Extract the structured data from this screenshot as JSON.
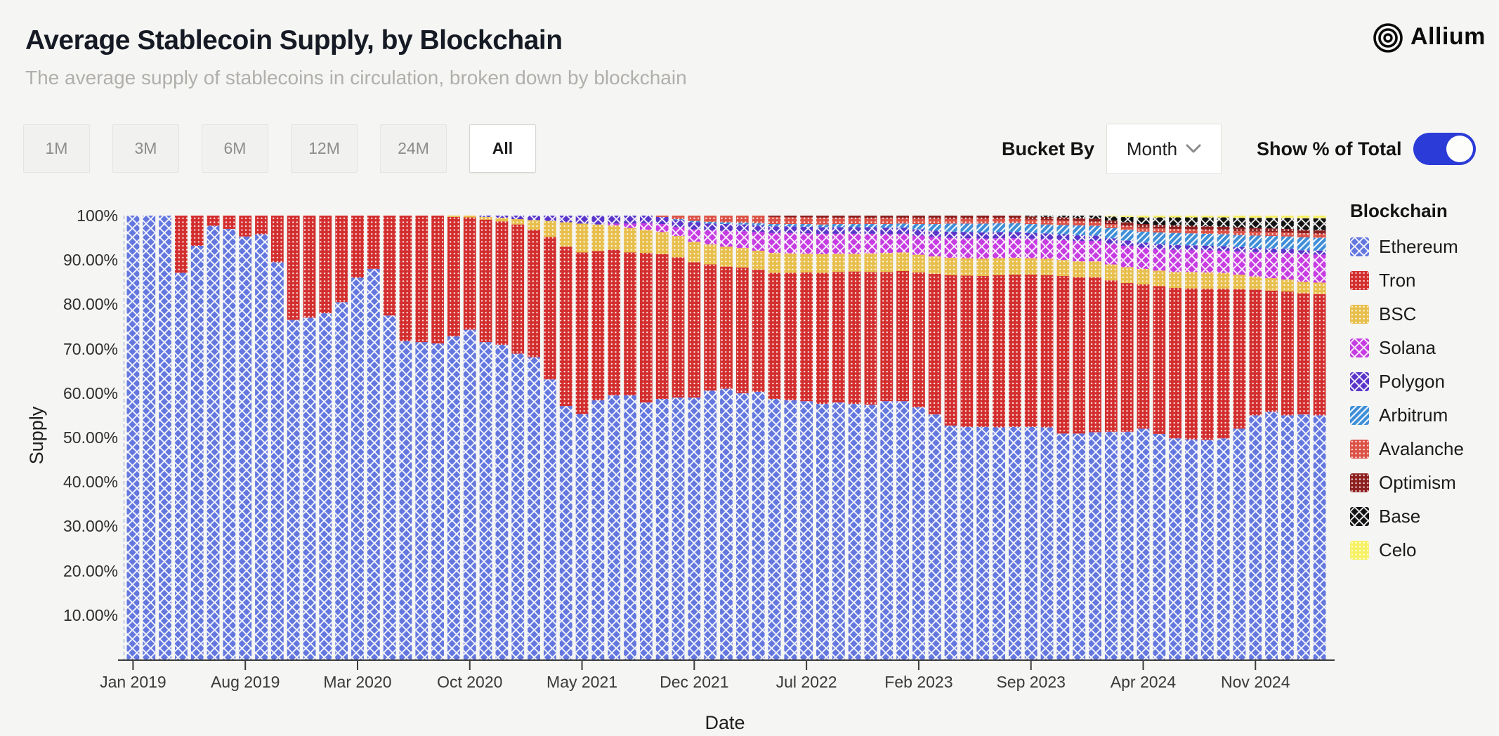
{
  "header": {
    "title": "Average Stablecoin Supply, by Blockchain",
    "subtitle": "The average supply of stablecoins in circulation, broken down by blockchain",
    "logo_text": "Allium"
  },
  "controls": {
    "range_buttons": [
      {
        "label": "1M",
        "active": false
      },
      {
        "label": "3M",
        "active": false
      },
      {
        "label": "6M",
        "active": false
      },
      {
        "label": "12M",
        "active": false
      },
      {
        "label": "24M",
        "active": false
      },
      {
        "label": "All",
        "active": true
      }
    ],
    "bucket_by_label": "Bucket By",
    "bucket_value": "Month",
    "toggle_label": "Show % of Total",
    "toggle_on": true,
    "accent_color": "#2b3bd8"
  },
  "legend": {
    "title": "Blockchain"
  },
  "chart_data": {
    "type": "bar",
    "stacked": true,
    "percent_of_total": true,
    "xlabel": "Date",
    "ylabel": "Supply",
    "ylim": [
      0,
      100
    ],
    "grid": false,
    "legend_position": "right",
    "ytick_labels": [
      "10.00%",
      "20.00%",
      "30.00%",
      "40.00%",
      "50.00%",
      "60.00%",
      "70.00%",
      "80.00%",
      "90.00%",
      "100%"
    ],
    "xticks": [
      {
        "label": "Jan 2019",
        "month": 0
      },
      {
        "label": "Aug 2019",
        "month": 7
      },
      {
        "label": "Mar 2020",
        "month": 14
      },
      {
        "label": "Oct 2020",
        "month": 21
      },
      {
        "label": "May 2021",
        "month": 28
      },
      {
        "label": "Dec 2021",
        "month": 35
      },
      {
        "label": "Jul 2022",
        "month": 42
      },
      {
        "label": "Feb 2023",
        "month": 49
      },
      {
        "label": "Sep 2023",
        "month": 56
      },
      {
        "label": "Apr 2024",
        "month": 63
      },
      {
        "label": "Nov 2024",
        "month": 70
      }
    ],
    "months": [
      "Jan 2019",
      "Feb 2019",
      "Mar 2019",
      "Apr 2019",
      "May 2019",
      "Jun 2019",
      "Jul 2019",
      "Aug 2019",
      "Sep 2019",
      "Oct 2019",
      "Nov 2019",
      "Dec 2019",
      "Jan 2020",
      "Feb 2020",
      "Mar 2020",
      "Apr 2020",
      "May 2020",
      "Jun 2020",
      "Jul 2020",
      "Aug 2020",
      "Sep 2020",
      "Oct 2020",
      "Nov 2020",
      "Dec 2020",
      "Jan 2021",
      "Feb 2021",
      "Mar 2021",
      "Apr 2021",
      "May 2021",
      "Jun 2021",
      "Jul 2021",
      "Aug 2021",
      "Sep 2021",
      "Oct 2021",
      "Nov 2021",
      "Dec 2021",
      "Jan 2022",
      "Feb 2022",
      "Mar 2022",
      "Apr 2022",
      "May 2022",
      "Jun 2022",
      "Jul 2022",
      "Aug 2022",
      "Sep 2022",
      "Oct 2022",
      "Nov 2022",
      "Dec 2022",
      "Jan 2023",
      "Feb 2023",
      "Mar 2023",
      "Apr 2023",
      "May 2023",
      "Jun 2023",
      "Jul 2023",
      "Aug 2023",
      "Sep 2023",
      "Oct 2023",
      "Nov 2023",
      "Dec 2023",
      "Jan 2024",
      "Feb 2024",
      "Mar 2024",
      "Apr 2024",
      "May 2024",
      "Jun 2024",
      "Jul 2024",
      "Aug 2024",
      "Sep 2024",
      "Oct 2024",
      "Nov 2024",
      "Dec 2024",
      "Jan 2025",
      "Feb 2025",
      "Mar 2025"
    ],
    "series": [
      {
        "name": "Ethereum",
        "color": "#6377de",
        "pattern": "diamond",
        "values": [
          100,
          100,
          100,
          87.1,
          93.2,
          97.7,
          97,
          95.3,
          95.8,
          89.5,
          76.5,
          77,
          78,
          80.5,
          86,
          88,
          77.5,
          71.7,
          71.5,
          71.2,
          72.8,
          74.3,
          71.5,
          70.9,
          68.9,
          68.1,
          63.1,
          57.1,
          55.3,
          58.4,
          59.5,
          59.5,
          57.9,
          58.7,
          59,
          59,
          60.6,
          61,
          60,
          60.3,
          58.7,
          58.4,
          58.2,
          57.6,
          57.9,
          57.6,
          57.4,
          58.2,
          58.2,
          56.8,
          55.2,
          52.7,
          52.4,
          52.4,
          52.3,
          52.4,
          52.4,
          52.3,
          50.9,
          50.9,
          51.2,
          51.3,
          51.3,
          52,
          50.8,
          49.8,
          49.6,
          49.5,
          49.8,
          52,
          55,
          55.8,
          55,
          55.2,
          55
        ]
      },
      {
        "name": "Tron",
        "color": "#d32e2e",
        "pattern": "dots",
        "values": [
          0,
          0,
          0,
          12.9,
          6.8,
          2.3,
          3,
          4.7,
          4.2,
          10.5,
          23.5,
          23,
          22,
          19.5,
          14,
          12,
          22.5,
          28.3,
          28.5,
          28.8,
          26.9,
          25.3,
          27.6,
          27.8,
          29.1,
          28.7,
          32.1,
          35.9,
          36.4,
          33.6,
          32.8,
          32.2,
          33.7,
          32.6,
          31.6,
          30.5,
          28.4,
          27.5,
          28.3,
          27.5,
          28.4,
          28.7,
          29,
          29.5,
          29.4,
          29.8,
          29.9,
          29.1,
          29.3,
          30.4,
          31.7,
          33.9,
          34.1,
          34,
          34.3,
          34.3,
          34.3,
          34.3,
          35.5,
          35.2,
          34.9,
          34.1,
          33.5,
          32.5,
          33.3,
          33.9,
          34,
          34,
          33.7,
          31.4,
          28.3,
          27.3,
          27.9,
          27.3,
          27.3
        ]
      },
      {
        "name": "BSC",
        "color": "#e8bf4c",
        "pattern": "dots",
        "values": [
          0,
          0,
          0,
          0,
          0,
          0,
          0,
          0,
          0,
          0,
          0,
          0,
          0,
          0,
          0,
          0,
          0,
          0,
          0,
          0,
          0.3,
          0.4,
          0.6,
          0.8,
          1.2,
          2.2,
          3.6,
          5.5,
          6.5,
          6,
          5.5,
          5.5,
          5.2,
          5,
          4.8,
          4.6,
          4.5,
          4.5,
          4.4,
          4.3,
          4.5,
          4.4,
          4.2,
          4.2,
          4.1,
          4,
          4.2,
          4.3,
          4.2,
          4,
          3.9,
          3.9,
          3.9,
          3.9,
          3.8,
          3.8,
          3.7,
          3.7,
          3.6,
          3.6,
          3.6,
          3.6,
          3.6,
          3.5,
          3.5,
          3.6,
          3.7,
          3.7,
          3.6,
          3.3,
          3,
          2.8,
          2.7,
          2.6,
          2.6
        ]
      },
      {
        "name": "Solana",
        "color": "#c63ce2",
        "pattern": "diamond",
        "values": [
          0,
          0,
          0,
          0,
          0,
          0,
          0,
          0,
          0,
          0,
          0,
          0,
          0,
          0,
          0,
          0,
          0,
          0,
          0,
          0,
          0,
          0,
          0,
          0,
          0,
          0,
          0,
          0,
          0,
          0,
          0.4,
          1,
          1.5,
          1.8,
          2,
          2.8,
          3.2,
          3.6,
          3.8,
          4.2,
          4.5,
          4.6,
          4.6,
          4.6,
          4.5,
          4.5,
          4.4,
          4.2,
          4.2,
          4.3,
          4.4,
          4.5,
          4.5,
          4.5,
          4.5,
          4.4,
          4.4,
          4.4,
          4.5,
          4.6,
          4.6,
          4.7,
          4.8,
          4.8,
          4.9,
          5,
          5,
          5,
          5,
          5.2,
          5.5,
          5.8,
          6,
          6.2,
          6.3
        ]
      },
      {
        "name": "Polygon",
        "color": "#5a35ca",
        "pattern": "diamond",
        "values": [
          0,
          0,
          0,
          0,
          0,
          0,
          0,
          0,
          0,
          0,
          0,
          0,
          0,
          0,
          0,
          0,
          0,
          0,
          0,
          0,
          0,
          0,
          0.3,
          0.5,
          0.8,
          1,
          1.2,
          1.5,
          1.8,
          2,
          1.8,
          1.8,
          1.7,
          1.6,
          1.6,
          1.6,
          1.5,
          1.5,
          1.5,
          1.5,
          1.5,
          1.5,
          1.5,
          1.5,
          1.5,
          1.5,
          1.5,
          1.5,
          1.4,
          1.4,
          1.4,
          1.4,
          1.4,
          1.4,
          1.4,
          1.4,
          1.3,
          1.3,
          1.3,
          1.3,
          1.2,
          1.2,
          1.2,
          1.1,
          1.1,
          1.1,
          1,
          1,
          1,
          1,
          0.9,
          0.9,
          0.9,
          0.9,
          0.9
        ]
      },
      {
        "name": "Arbitrum",
        "color": "#3f8ed8",
        "pattern": "stripes",
        "values": [
          0,
          0,
          0,
          0,
          0,
          0,
          0,
          0,
          0,
          0,
          0,
          0,
          0,
          0,
          0,
          0,
          0,
          0,
          0,
          0,
          0,
          0,
          0,
          0,
          0,
          0,
          0,
          0,
          0,
          0,
          0,
          0,
          0,
          0,
          0.2,
          0.3,
          0.4,
          0.4,
          0.4,
          0.5,
          0.5,
          0.5,
          0.6,
          0.6,
          0.7,
          0.7,
          0.7,
          0.8,
          0.9,
          1.2,
          1.5,
          1.8,
          1.9,
          2,
          2,
          2,
          2,
          2,
          2.1,
          2.2,
          2.2,
          2.3,
          2.4,
          2.5,
          2.6,
          2.7,
          2.7,
          2.7,
          2.7,
          2.7,
          2.8,
          2.8,
          2.8,
          2.9,
          2.9
        ]
      },
      {
        "name": "Avalanche",
        "color": "#dc5247",
        "pattern": "dots",
        "values": [
          0,
          0,
          0,
          0,
          0,
          0,
          0,
          0,
          0,
          0,
          0,
          0,
          0,
          0,
          0,
          0,
          0,
          0,
          0,
          0,
          0,
          0,
          0,
          0,
          0,
          0,
          0,
          0,
          0,
          0,
          0,
          0,
          0,
          0.3,
          0.8,
          1.2,
          1.4,
          1.5,
          1.6,
          1.7,
          1.6,
          1.5,
          1.5,
          1.5,
          1.4,
          1.4,
          1.3,
          1.3,
          1.2,
          1.2,
          1.2,
          1.1,
          1.1,
          1.1,
          1,
          1,
          1,
          1,
          1,
          1,
          0.9,
          0.9,
          0.9,
          0.9,
          0.9,
          0.9,
          0.9,
          0.9,
          0.9,
          0.9,
          0.9,
          0.9,
          0.9,
          0.9,
          0.9
        ]
      },
      {
        "name": "Optimism",
        "color": "#8e1f1f",
        "pattern": "dots",
        "values": [
          0,
          0,
          0,
          0,
          0,
          0,
          0,
          0,
          0,
          0,
          0,
          0,
          0,
          0,
          0,
          0,
          0,
          0,
          0,
          0,
          0,
          0,
          0,
          0,
          0,
          0,
          0,
          0,
          0,
          0,
          0,
          0,
          0,
          0,
          0,
          0,
          0,
          0,
          0,
          0,
          0.3,
          0.4,
          0.4,
          0.5,
          0.5,
          0.5,
          0.6,
          0.6,
          0.6,
          0.7,
          0.7,
          0.7,
          0.7,
          0.7,
          0.7,
          0.7,
          0.7,
          0.7,
          0.7,
          0.7,
          0.7,
          0.8,
          0.8,
          0.8,
          0.8,
          0.8,
          0.8,
          0.8,
          0.8,
          0.8,
          0.8,
          0.8,
          0.8,
          0.8,
          0.8
        ]
      },
      {
        "name": "Base",
        "color": "#131313",
        "pattern": "diamond",
        "values": [
          0,
          0,
          0,
          0,
          0,
          0,
          0,
          0,
          0,
          0,
          0,
          0,
          0,
          0,
          0,
          0,
          0,
          0,
          0,
          0,
          0,
          0,
          0,
          0,
          0,
          0,
          0,
          0,
          0,
          0,
          0,
          0,
          0,
          0,
          0,
          0,
          0,
          0,
          0,
          0,
          0,
          0,
          0,
          0,
          0,
          0,
          0,
          0,
          0,
          0,
          0,
          0,
          0,
          0,
          0,
          0,
          0.2,
          0.3,
          0.4,
          0.5,
          0.7,
          0.9,
          1.2,
          1.5,
          1.7,
          1.8,
          1.9,
          2,
          2.1,
          2.2,
          2.3,
          2.4,
          2.5,
          2.6,
          2.7
        ]
      },
      {
        "name": "Celo",
        "color": "#f7f163",
        "pattern": "dots",
        "values": [
          0,
          0,
          0,
          0,
          0,
          0,
          0,
          0,
          0,
          0,
          0,
          0,
          0,
          0,
          0,
          0,
          0,
          0,
          0,
          0,
          0,
          0,
          0,
          0,
          0,
          0,
          0,
          0,
          0,
          0,
          0,
          0,
          0,
          0,
          0,
          0,
          0,
          0,
          0,
          0,
          0,
          0,
          0,
          0,
          0,
          0,
          0,
          0,
          0,
          0,
          0,
          0,
          0,
          0,
          0,
          0,
          0,
          0,
          0,
          0,
          0,
          0.2,
          0.3,
          0.4,
          0.4,
          0.4,
          0.4,
          0.4,
          0.4,
          0.5,
          0.5,
          0.5,
          0.5,
          0.6,
          0.6
        ]
      }
    ]
  }
}
